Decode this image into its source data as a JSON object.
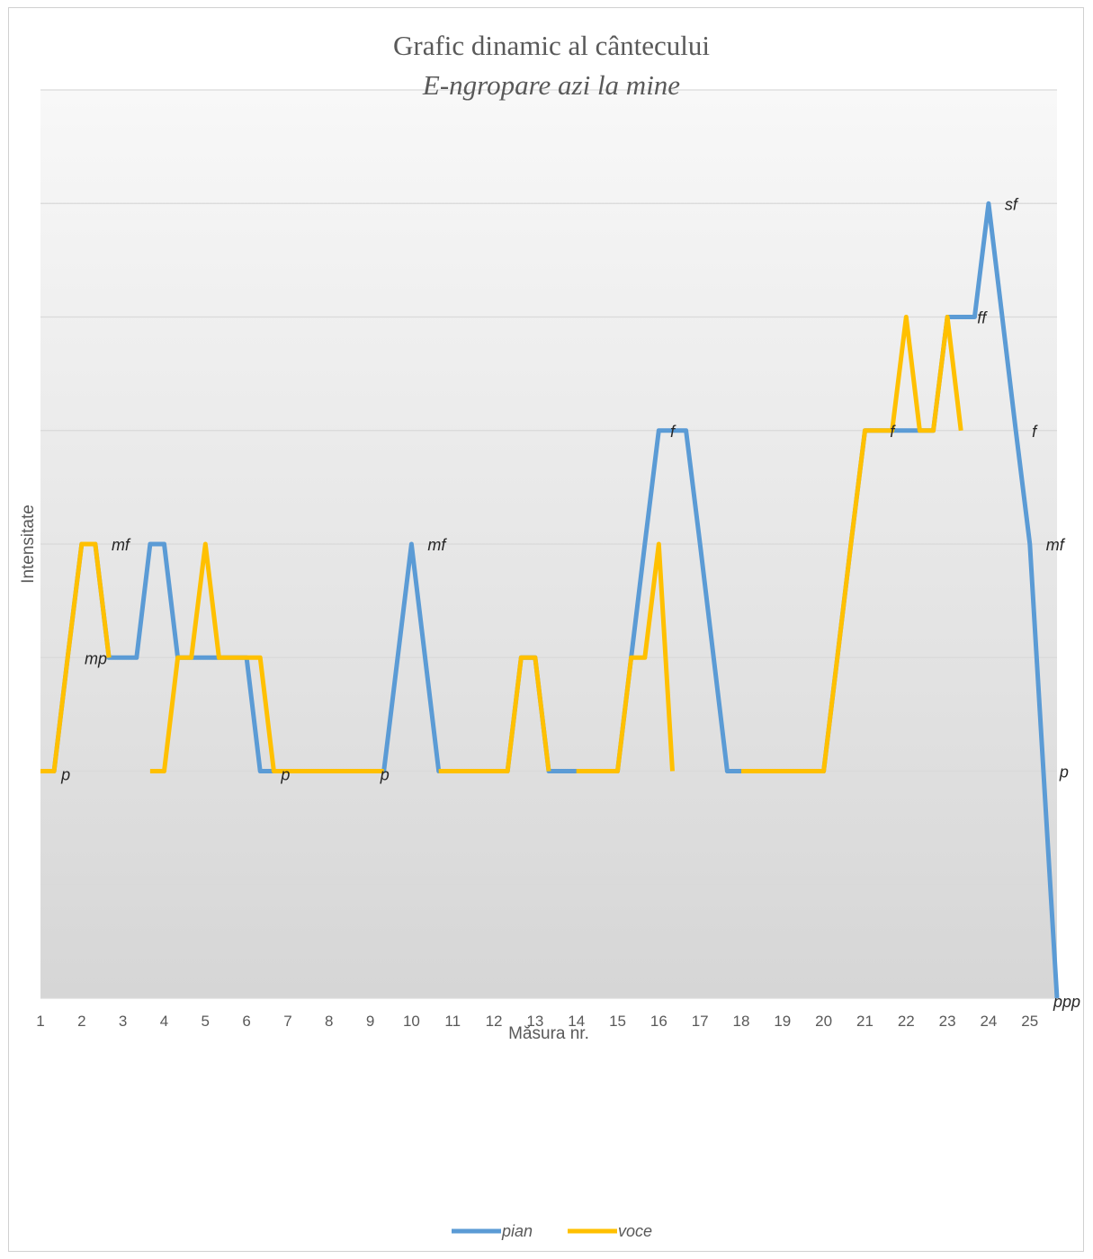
{
  "chart_data": {
    "type": "line",
    "title": "Grafic dinamic al cântecului",
    "subtitle": "E-ngropare azi la mine",
    "xlabel": "Măsura nr.",
    "ylabel": "Intensitate",
    "categories": [
      "1",
      "2",
      "3",
      "4",
      "5",
      "6",
      "7",
      "8",
      "9",
      "10",
      "11",
      "12",
      "13",
      "14",
      "15",
      "16",
      "17",
      "18",
      "19",
      "20",
      "21",
      "22",
      "23",
      "24",
      "25"
    ],
    "xlim": [
      1,
      25.66
    ],
    "ylim": [
      0,
      8
    ],
    "grid": true,
    "legend": "bottom",
    "series": [
      {
        "name": "pian",
        "color": "#5b9bd5",
        "points": [
          [
            1,
            2
          ],
          [
            1.33,
            2
          ],
          [
            1.66,
            3
          ],
          [
            2,
            4
          ],
          [
            2.33,
            4
          ],
          [
            2.66,
            3
          ],
          [
            3,
            3
          ],
          [
            3.33,
            3
          ],
          [
            3.66,
            4
          ],
          [
            4,
            4
          ],
          [
            4.33,
            3
          ],
          [
            4.66,
            3
          ],
          [
            5,
            3
          ],
          [
            5.33,
            3
          ],
          [
            5.66,
            3
          ],
          [
            6,
            3
          ],
          [
            6.33,
            2
          ],
          [
            6.66,
            2
          ],
          [
            7,
            2
          ],
          [
            7.33,
            2
          ],
          [
            7.66,
            2
          ],
          [
            8,
            2
          ],
          [
            8.33,
            2
          ],
          [
            8.66,
            2
          ],
          [
            9,
            2
          ],
          [
            9.33,
            2
          ],
          [
            10,
            4
          ],
          [
            10.66,
            2
          ],
          [
            11,
            2
          ],
          [
            11.33,
            2
          ],
          [
            11.66,
            2
          ],
          [
            12,
            2
          ],
          [
            12.33,
            2
          ],
          [
            12.66,
            3
          ],
          [
            13,
            3
          ],
          [
            13.33,
            2
          ],
          [
            13.66,
            2
          ],
          [
            14,
            2
          ],
          [
            14.33,
            2
          ],
          [
            14.66,
            2
          ],
          [
            15,
            2
          ],
          [
            15.33,
            3
          ],
          [
            15.66,
            4
          ],
          [
            16,
            5
          ],
          [
            16.33,
            5
          ],
          [
            16.66,
            5
          ],
          [
            17,
            4
          ],
          [
            17.33,
            3
          ],
          [
            17.66,
            2
          ],
          [
            18,
            2
          ],
          [
            18.33,
            2
          ],
          [
            18.66,
            2
          ],
          [
            19,
            2
          ],
          [
            19.33,
            2
          ],
          [
            19.66,
            2
          ],
          [
            20,
            2
          ],
          [
            20.33,
            3
          ],
          [
            20.66,
            4
          ],
          [
            21,
            5
          ],
          [
            21.33,
            5
          ],
          [
            21.66,
            5
          ],
          [
            22,
            5
          ],
          [
            22.33,
            5
          ],
          [
            22.66,
            5
          ],
          [
            23,
            6
          ],
          [
            23.33,
            6
          ],
          [
            23.66,
            6
          ],
          [
            24,
            7
          ],
          [
            24.33,
            6
          ],
          [
            24.66,
            5
          ],
          [
            25,
            4
          ],
          [
            25.33,
            2
          ],
          [
            25.66,
            0
          ]
        ]
      },
      {
        "name": "voce",
        "color": "#ffc000",
        "segments": [
          [
            [
              1,
              2
            ],
            [
              1.33,
              2
            ],
            [
              1.66,
              3
            ],
            [
              2,
              4
            ],
            [
              2.33,
              4
            ],
            [
              2.66,
              3
            ]
          ],
          [
            [
              3.66,
              2
            ],
            [
              4,
              2
            ],
            [
              4.33,
              3
            ],
            [
              4.66,
              3
            ],
            [
              5,
              4
            ],
            [
              5.33,
              3
            ],
            [
              5.66,
              3
            ],
            [
              6,
              3
            ],
            [
              6.33,
              3
            ],
            [
              6.66,
              2
            ],
            [
              7,
              2
            ],
            [
              7.33,
              2
            ],
            [
              7.66,
              2
            ],
            [
              8,
              2
            ],
            [
              8.33,
              2
            ],
            [
              8.66,
              2
            ],
            [
              9,
              2
            ],
            [
              9.33,
              2
            ]
          ],
          [
            [
              10.66,
              2
            ],
            [
              11,
              2
            ],
            [
              11.33,
              2
            ],
            [
              11.66,
              2
            ],
            [
              12,
              2
            ],
            [
              12.33,
              2
            ],
            [
              12.66,
              3
            ],
            [
              13,
              3
            ],
            [
              13.33,
              2
            ]
          ],
          [
            [
              14,
              2
            ],
            [
              14.33,
              2
            ],
            [
              14.66,
              2
            ],
            [
              15,
              2
            ],
            [
              15.33,
              3
            ],
            [
              15.66,
              3
            ],
            [
              16,
              4
            ],
            [
              16.33,
              2
            ]
          ],
          [
            [
              18,
              2
            ],
            [
              18.33,
              2
            ],
            [
              18.66,
              2
            ],
            [
              19,
              2
            ],
            [
              19.33,
              2
            ],
            [
              19.66,
              2
            ],
            [
              20,
              2
            ],
            [
              20.33,
              3
            ],
            [
              20.66,
              4
            ],
            [
              21,
              5
            ],
            [
              21.33,
              5
            ],
            [
              21.66,
              5
            ],
            [
              22,
              6
            ],
            [
              22.33,
              5
            ],
            [
              22.66,
              5
            ],
            [
              23,
              6
            ],
            [
              23.33,
              5
            ]
          ]
        ]
      }
    ],
    "annotations": [
      {
        "text": "p",
        "x": 1.33,
        "y": 2,
        "pos": "below-right"
      },
      {
        "text": "mf",
        "x": 2.33,
        "y": 4,
        "pos": "right"
      },
      {
        "text": "mp",
        "x": 2.66,
        "y": 3,
        "pos": "left"
      },
      {
        "text": "p",
        "x": 6.66,
        "y": 2,
        "pos": "below-right"
      },
      {
        "text": "p",
        "x": 9.33,
        "y": 2,
        "pos": "below"
      },
      {
        "text": "mf",
        "x": 10,
        "y": 4,
        "pos": "right"
      },
      {
        "text": "f",
        "x": 16.33,
        "y": 5,
        "pos": "center"
      },
      {
        "text": "f",
        "x": 21.66,
        "y": 5,
        "pos": "center"
      },
      {
        "text": "ff",
        "x": 23.33,
        "y": 6,
        "pos": "right"
      },
      {
        "text": "sf",
        "x": 24,
        "y": 7,
        "pos": "right"
      },
      {
        "text": "f",
        "x": 24.66,
        "y": 5,
        "pos": "right"
      },
      {
        "text": "mf",
        "x": 25,
        "y": 4,
        "pos": "right"
      },
      {
        "text": "p",
        "x": 25.33,
        "y": 2,
        "pos": "right"
      },
      {
        "text": "ppp",
        "x": 25.66,
        "y": 0,
        "pos": "below"
      }
    ]
  }
}
